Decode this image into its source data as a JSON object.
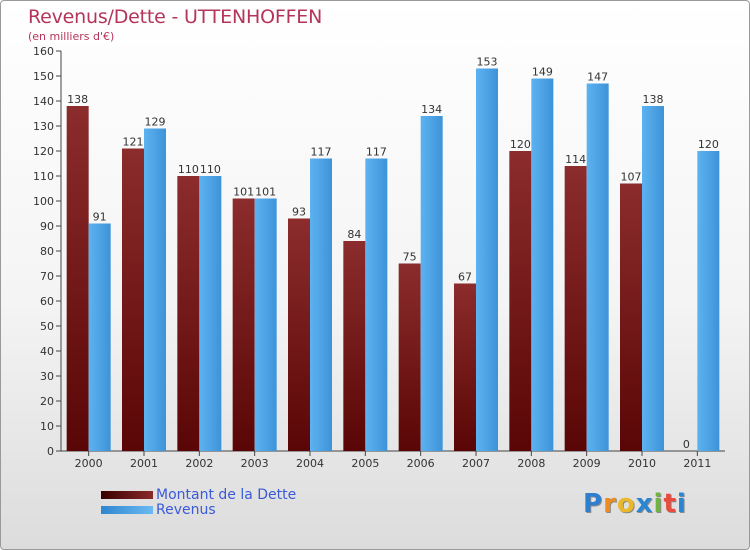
{
  "title": "Revenus/Dette - UTTENHOFFEN",
  "subtitle": "(en milliers d'€)",
  "chart_data": {
    "type": "bar",
    "categories": [
      "2000",
      "2001",
      "2002",
      "2003",
      "2004",
      "2005",
      "2006",
      "2007",
      "2008",
      "2009",
      "2010",
      "2011"
    ],
    "series": [
      {
        "name": "Montant de la Dette",
        "values": [
          138,
          121,
          110,
          101,
          93,
          84,
          75,
          67,
          120,
          114,
          107,
          0
        ],
        "color": "#7a1f1f"
      },
      {
        "name": "Revenus",
        "values": [
          91,
          129,
          110,
          101,
          117,
          117,
          134,
          153,
          149,
          147,
          138,
          120
        ],
        "color": "#4aa3e6"
      }
    ],
    "yticks": [
      0,
      10,
      20,
      30,
      40,
      50,
      60,
      70,
      80,
      90,
      100,
      110,
      120,
      130,
      140,
      150,
      160
    ],
    "ylim": [
      0,
      160
    ],
    "grid": false,
    "legend_position": "bottom-left"
  },
  "legend": [
    {
      "label": "Montant de la Dette",
      "color": "#6a1010"
    },
    {
      "label": "Revenus",
      "color": "#4aa3e6"
    }
  ],
  "logo": {
    "letters": [
      "P",
      "r",
      "o",
      "x",
      "i",
      "t",
      "i"
    ],
    "colors": [
      "#2e7fd0",
      "#ef8a1c",
      "#e9b82b",
      "#2a86d2",
      "#6fb43f",
      "#e94b3c",
      "#2a86d2"
    ]
  }
}
